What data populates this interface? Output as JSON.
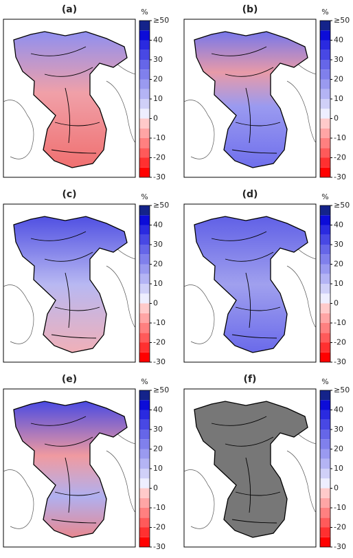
{
  "panels": [
    {
      "label": "(a)"
    },
    {
      "label": "(b)"
    },
    {
      "label": "(c)"
    },
    {
      "label": "(d)"
    },
    {
      "label": "(e)"
    },
    {
      "label": "(f)"
    }
  ],
  "colorbar": {
    "unit": "%",
    "range": [
      -30,
      50
    ],
    "ticks": [
      {
        "value": 50,
        "label": "≥50"
      },
      40,
      30,
      20,
      10,
      0,
      -10,
      -20,
      -30
    ],
    "colors": [
      "#ff0000",
      "#ff3030",
      "#ff5a5a",
      "#ff8080",
      "#ffa5a5",
      "#ffcaca",
      "#eeeeff",
      "#d0d0f8",
      "#b4b4f4",
      "#9a9af0",
      "#8080ec",
      "#6666e8",
      "#4848e4",
      "#2a2ae0",
      "#0c0cd8",
      "#14238a"
    ]
  }
}
